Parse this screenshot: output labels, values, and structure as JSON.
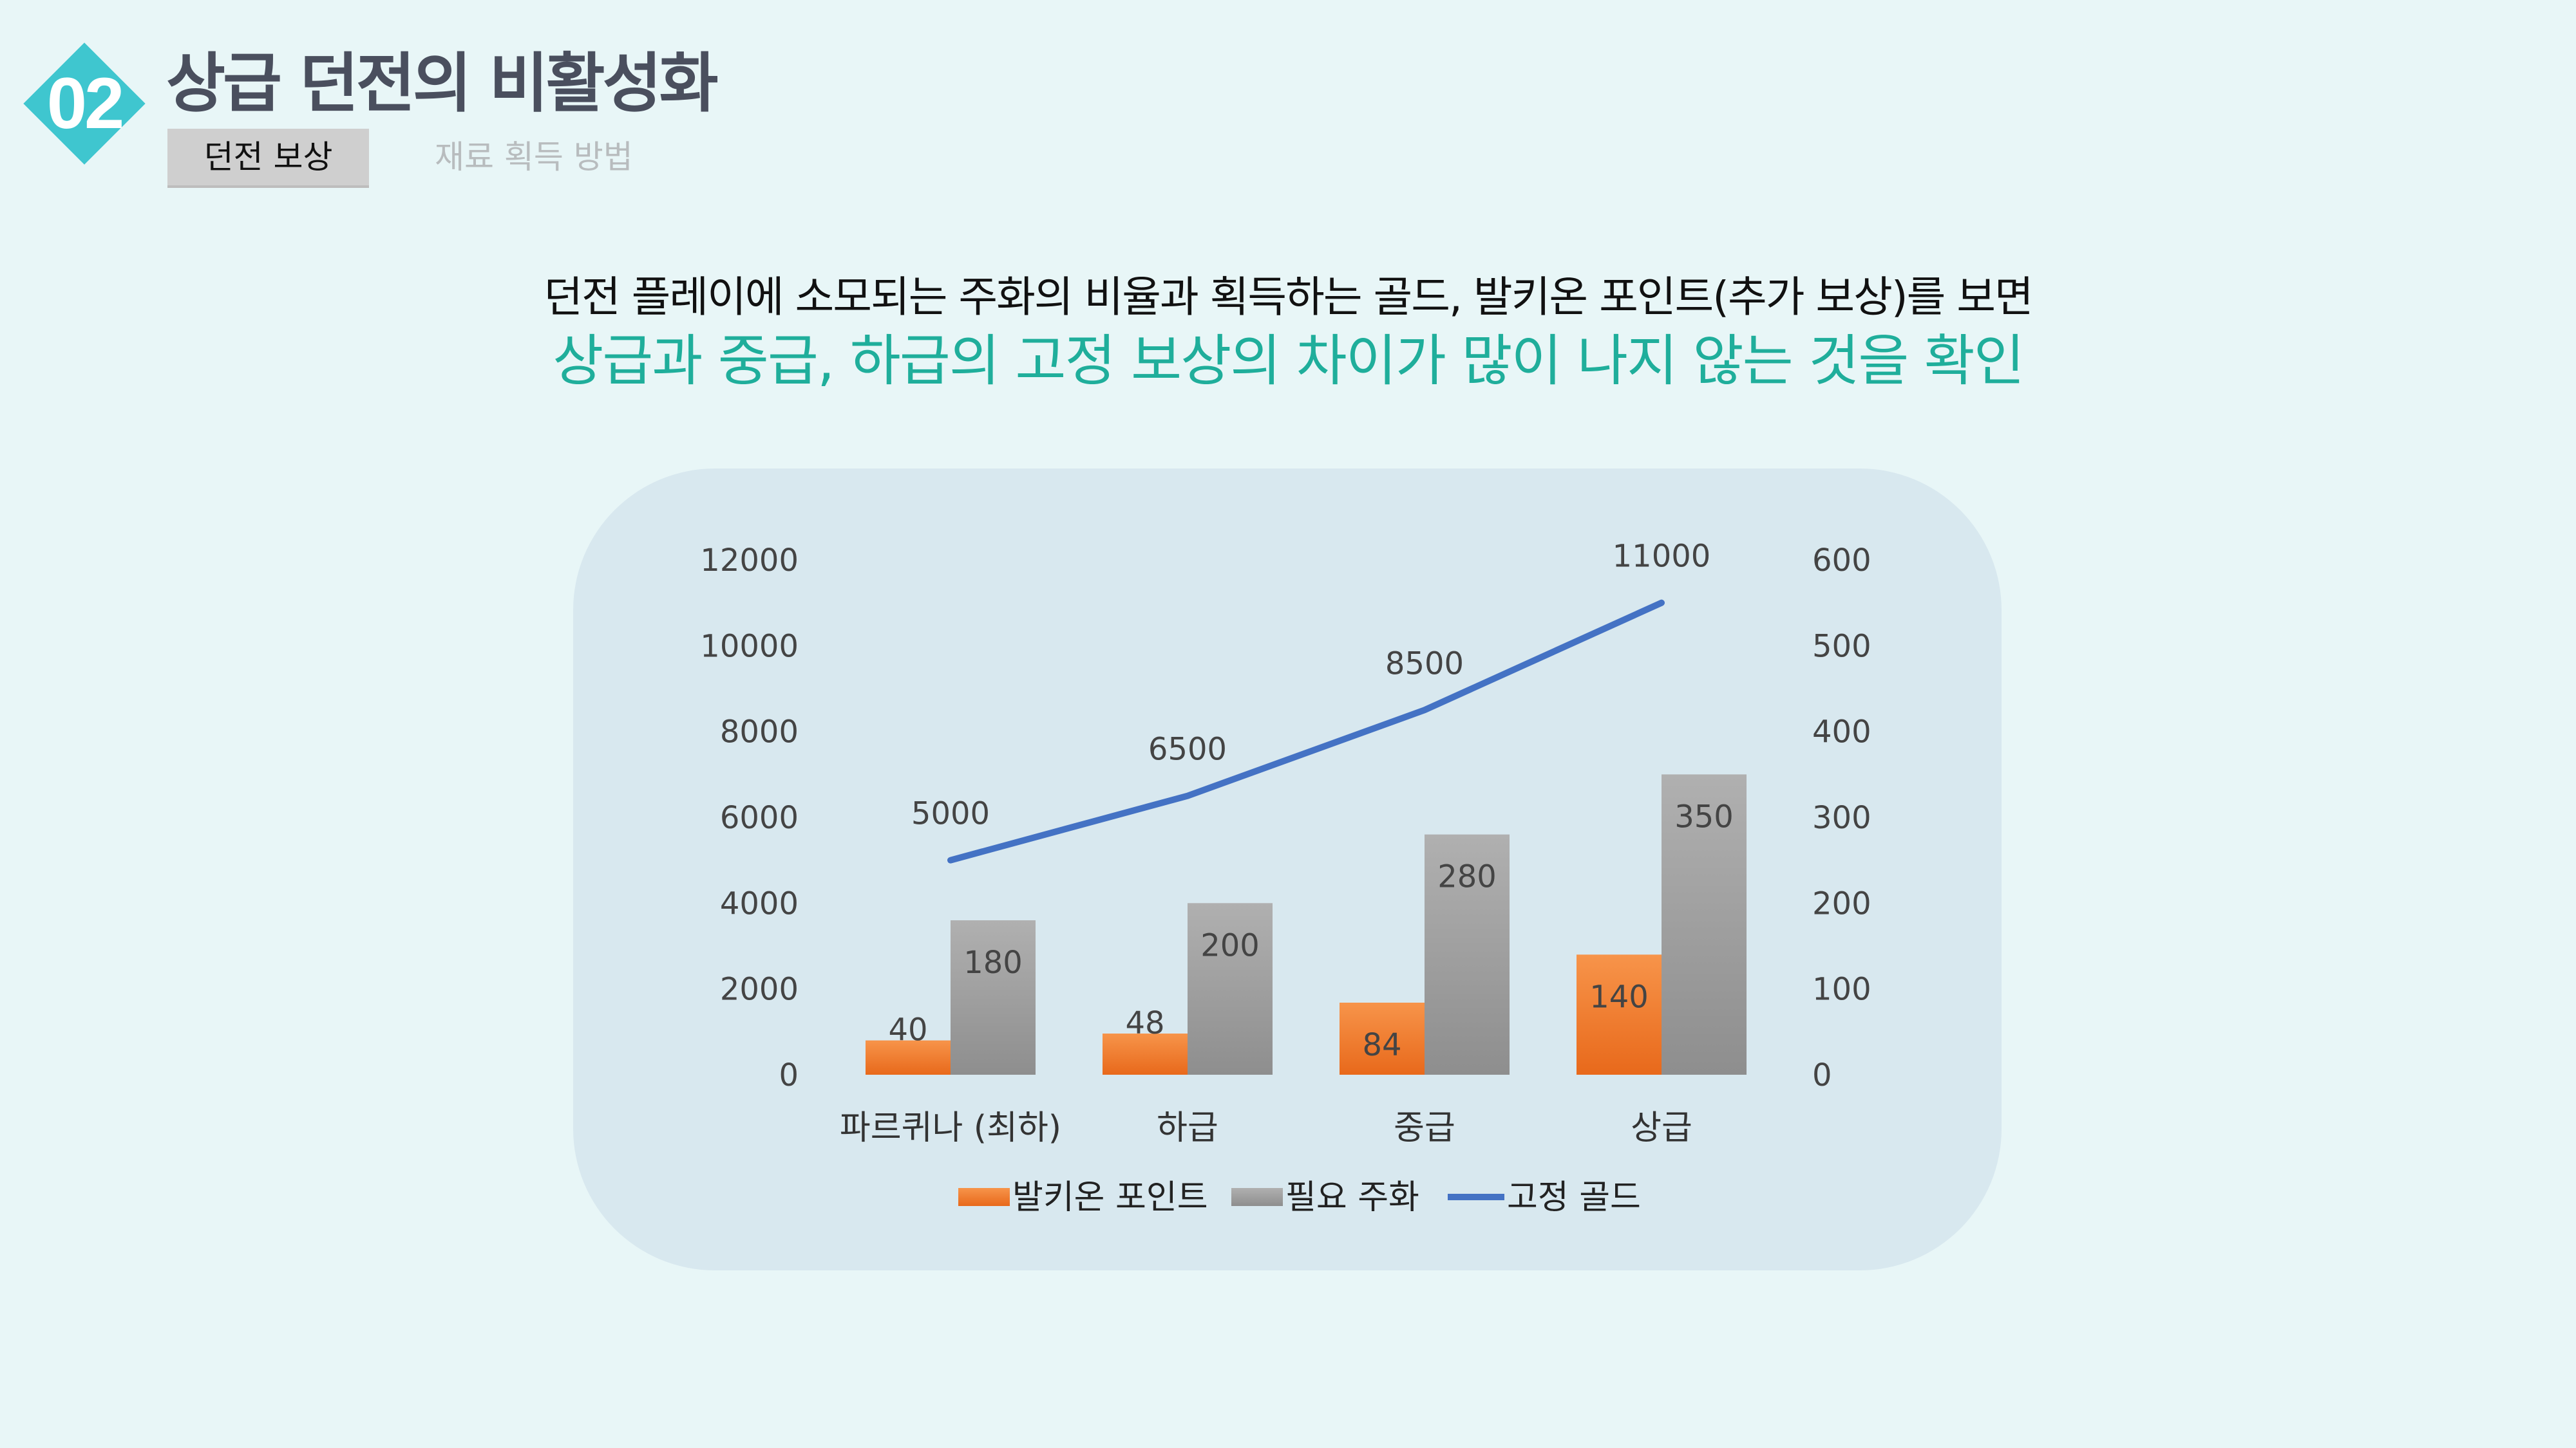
{
  "header": {
    "section_number": "02",
    "title": "상급 던전의 비활성화",
    "tabs": [
      {
        "label": "던전 보상",
        "active": true
      },
      {
        "label": "재료 획득 방법",
        "active": false
      }
    ]
  },
  "headline": {
    "line1": "던전 플레이에 소모되는 주화의 비율과 획득하는 골드, 발키온 포인트(추가 보상)를 보면",
    "line2": "상급과 중급, 하급의 고정 보상의 차이가 많이 나지 않는 것을 확인"
  },
  "colors": {
    "accent_teal": "#3fc6cf",
    "headline_green": "#1fae9b",
    "bar_orange": "#f07a24",
    "bar_gray": "#a3a3a3",
    "line_blue": "#4472c4"
  },
  "chart_data": {
    "type": "bar",
    "categories": [
      "파르퀴나 (최하)",
      "하급",
      "중급",
      "상급"
    ],
    "series": [
      {
        "name": "발키온 포인트",
        "type": "bar",
        "axis": "right",
        "color": "#f07a24",
        "values": [
          40,
          48,
          84,
          140
        ]
      },
      {
        "name": "필요 주화",
        "type": "bar",
        "axis": "right",
        "color": "#a3a3a3",
        "values": [
          180,
          200,
          280,
          350
        ]
      },
      {
        "name": "고정 골드",
        "type": "line",
        "axis": "left",
        "color": "#4472c4",
        "values": [
          5000,
          6500,
          8500,
          11000
        ]
      }
    ],
    "left_axis": {
      "ylim": [
        0,
        12000
      ],
      "ticks": [
        "0",
        "2000",
        "4000",
        "6000",
        "8000",
        "10000",
        "12000"
      ]
    },
    "right_axis": {
      "ylim": [
        0,
        600
      ],
      "ticks": [
        "0",
        "100",
        "200",
        "300",
        "400",
        "500",
        "600"
      ]
    },
    "legend_position": "bottom",
    "grid": false,
    "title": "",
    "xlabel": "",
    "ylabel": ""
  }
}
